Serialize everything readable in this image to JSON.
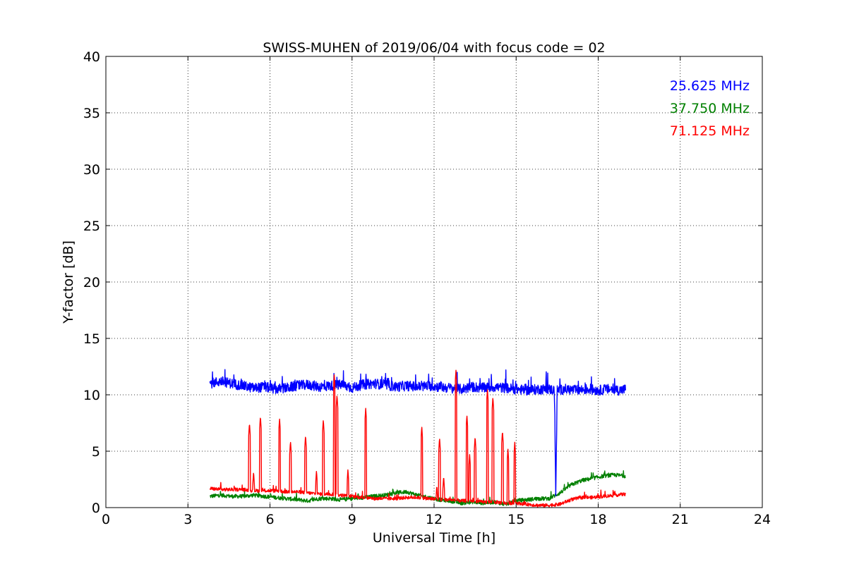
{
  "chart_data": {
    "type": "line",
    "title": "SWISS-MUHEN of 2019/06/04 with focus code = 02",
    "xlabel": "Universal Time [h]",
    "ylabel": "Y-factor [dB]",
    "xlim": [
      0,
      24
    ],
    "ylim": [
      0,
      40
    ],
    "xticks": [
      0,
      3,
      6,
      9,
      12,
      15,
      18,
      21,
      24
    ],
    "yticks": [
      0,
      5,
      10,
      15,
      20,
      25,
      30,
      35,
      40
    ],
    "xtick_labels": [
      "0",
      "3",
      "6",
      "9",
      "12",
      "15",
      "18",
      "21",
      "24"
    ],
    "ytick_labels": [
      "0",
      "5",
      "10",
      "15",
      "20",
      "25",
      "30",
      "35",
      "40"
    ],
    "grid": true,
    "legend_position": "top-right",
    "series": [
      {
        "name": "25.625 MHz",
        "color": "#0000ff",
        "x": [
          3.8,
          4.2,
          4.6,
          5.0,
          5.4,
          5.8,
          6.2,
          6.6,
          7.0,
          7.4,
          7.8,
          8.2,
          8.6,
          9.0,
          9.4,
          9.8,
          10.2,
          10.6,
          11.0,
          11.4,
          11.8,
          12.2,
          12.6,
          13.0,
          13.4,
          13.8,
          14.2,
          14.6,
          15.0,
          15.4,
          15.8,
          16.2,
          16.4,
          16.45,
          16.5,
          16.8,
          17.2,
          17.6,
          18.0,
          18.4,
          18.8,
          19.0
        ],
        "y": [
          11.0,
          11.2,
          11.0,
          10.8,
          10.6,
          10.7,
          10.5,
          10.6,
          10.8,
          10.9,
          10.7,
          10.8,
          10.9,
          10.6,
          10.9,
          11.0,
          10.9,
          10.7,
          10.8,
          10.7,
          10.8,
          10.7,
          10.6,
          10.5,
          10.7,
          10.6,
          10.7,
          10.6,
          10.5,
          10.4,
          10.5,
          10.5,
          10.4,
          1.0,
          10.4,
          10.5,
          10.4,
          10.5,
          10.4,
          10.5,
          10.4,
          10.5
        ],
        "noise": 0.9
      },
      {
        "name": "37.750 MHz",
        "color": "#008000",
        "x": [
          3.8,
          4.2,
          4.6,
          5.0,
          5.4,
          5.8,
          6.2,
          6.6,
          7.0,
          7.4,
          7.8,
          8.2,
          8.6,
          9.0,
          9.4,
          9.8,
          10.2,
          10.6,
          11.0,
          11.4,
          11.8,
          12.2,
          12.6,
          13.0,
          13.4,
          13.8,
          14.2,
          14.6,
          15.0,
          15.4,
          15.8,
          16.2,
          16.6,
          17.0,
          17.4,
          17.8,
          18.2,
          18.6,
          19.0
        ],
        "y": [
          1.0,
          1.1,
          1.0,
          1.0,
          1.1,
          1.0,
          0.9,
          0.8,
          0.7,
          0.6,
          0.8,
          0.8,
          0.7,
          0.8,
          0.9,
          1.0,
          1.1,
          1.3,
          1.4,
          1.1,
          0.9,
          0.7,
          0.6,
          0.4,
          0.5,
          0.4,
          0.5,
          0.3,
          0.6,
          0.7,
          0.8,
          0.8,
          1.3,
          2.0,
          2.4,
          2.6,
          2.8,
          2.9,
          2.8
        ],
        "noise": 0.35
      },
      {
        "name": "71.125 MHz",
        "color": "#ff0000",
        "x": [
          3.8,
          4.2,
          4.6,
          5.0,
          5.4,
          5.8,
          6.2,
          6.6,
          7.0,
          7.4,
          7.8,
          8.2,
          8.6,
          9.0,
          9.4,
          9.8,
          10.2,
          10.6,
          11.0,
          11.4,
          11.8,
          12.2,
          12.6,
          13.0,
          13.4,
          13.8,
          14.2,
          14.6,
          15.0,
          15.4,
          15.8,
          16.2,
          16.6,
          17.0,
          17.4,
          17.8,
          18.2,
          18.6,
          19.0
        ],
        "y": [
          1.7,
          1.6,
          1.6,
          1.6,
          1.5,
          1.5,
          1.5,
          1.4,
          1.4,
          1.3,
          1.2,
          1.2,
          1.1,
          1.0,
          0.9,
          0.8,
          0.8,
          0.8,
          0.9,
          0.9,
          0.8,
          0.7,
          0.7,
          0.6,
          0.6,
          0.5,
          0.5,
          0.4,
          0.4,
          0.3,
          0.2,
          0.2,
          0.3,
          0.7,
          0.9,
          0.9,
          1.0,
          1.1,
          1.2
        ],
        "noise": 0.3,
        "spikes": [
          [
            4.2,
            2.3
          ],
          [
            5.25,
            7.5
          ],
          [
            5.4,
            3.2
          ],
          [
            5.65,
            8.1
          ],
          [
            6.35,
            7.9
          ],
          [
            6.75,
            5.9
          ],
          [
            7.3,
            6.4
          ],
          [
            7.7,
            3.3
          ],
          [
            7.95,
            7.8
          ],
          [
            8.35,
            11.8
          ],
          [
            8.45,
            10.0
          ],
          [
            8.85,
            3.4
          ],
          [
            9.5,
            8.8
          ],
          [
            11.55,
            7.2
          ],
          [
            12.1,
            2.0
          ],
          [
            12.2,
            6.2
          ],
          [
            12.35,
            2.8
          ],
          [
            12.8,
            12.2
          ],
          [
            13.2,
            8.2
          ],
          [
            13.3,
            4.7
          ],
          [
            13.5,
            6.3
          ],
          [
            13.95,
            10.5
          ],
          [
            14.15,
            9.8
          ],
          [
            14.5,
            6.8
          ],
          [
            14.7,
            5.2
          ],
          [
            14.95,
            5.8
          ],
          [
            18.1,
            1.6
          ]
        ]
      }
    ]
  }
}
